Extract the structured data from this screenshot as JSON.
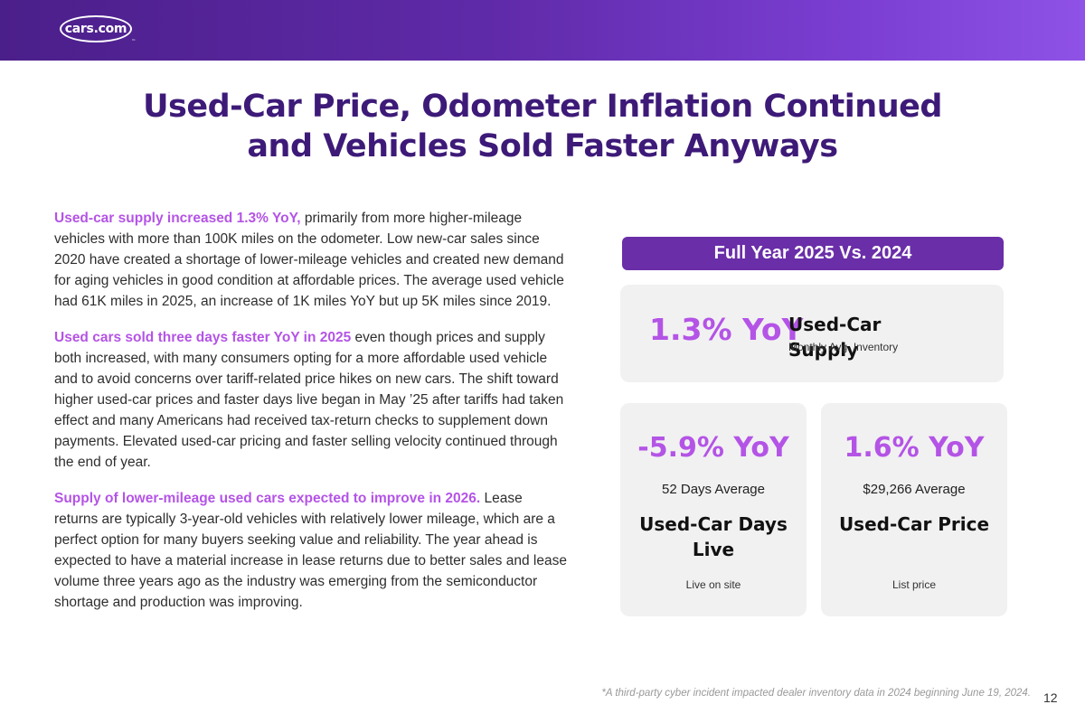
{
  "header": {
    "logo_text": "cars.com",
    "logo_tm": "™"
  },
  "title": {
    "line1": "Used-Car Price, Odometer Inflation Continued",
    "line2": "and Vehicles Sold Faster Anyways"
  },
  "body": {
    "paragraphs": [
      {
        "lead": "Used-car supply increased 1.3% YoY,",
        "text": " primarily from more higher-mileage vehicles with more than 100K miles on the odometer. Low new-car sales since 2020 have created a shortage of lower-mileage vehicles and created new demand for aging vehicles in good condition at affordable prices. The average used vehicle had 61K miles in 2025, an increase of 1K miles YoY but up 5K miles since 2019."
      },
      {
        "lead": "Used cars sold three days faster YoY in 2025",
        "text": " even though prices and supply both increased, with many consumers opting for a more affordable used vehicle and to avoid concerns over tariff-related price hikes on new cars. The shift toward higher used-car prices and faster days live began in May ’25 after tariffs had taken effect and many Americans had received tax-return checks to supplement down payments. Elevated used-car pricing and faster selling velocity continued through the end of year."
      },
      {
        "lead": "Supply of lower-mileage used cars expected to improve in 2026.",
        "text": " Lease returns are typically 3-year-old vehicles with relatively lower mileage, which are a perfect option for many buyers seeking value and reliability. The year ahead is expected to have a material increase in lease returns due to better sales and lease volume three years ago as the industry was emerging from the semiconductor shortage and production was improving."
      }
    ]
  },
  "stats": {
    "banner": "Full Year 2025 Vs. 2024",
    "supply": {
      "value": "1.3% YoY",
      "label": "Used-Car Supply",
      "sub": "Monthly Avg. Inventory"
    },
    "days_live": {
      "value": "-5.9% YoY",
      "average": "52 Days Average",
      "label": "Used-Car Days Live",
      "sub": "Live on site"
    },
    "price": {
      "value": "1.6% YoY",
      "average": "$29,266 Average",
      "label": "Used-Car Price",
      "sub": "List price"
    }
  },
  "footer": {
    "footnote": "*A third-party cyber incident impacted dealer inventory data in 2024 beginning June 19, 2024.",
    "page_number": "12"
  },
  "colors": {
    "header_start": "#4b1f8a",
    "header_end": "#8f52e6",
    "title": "#3d1a78",
    "accent": "#b454e6",
    "banner": "#6a2ea8",
    "card_bg": "#f1f1f1"
  }
}
